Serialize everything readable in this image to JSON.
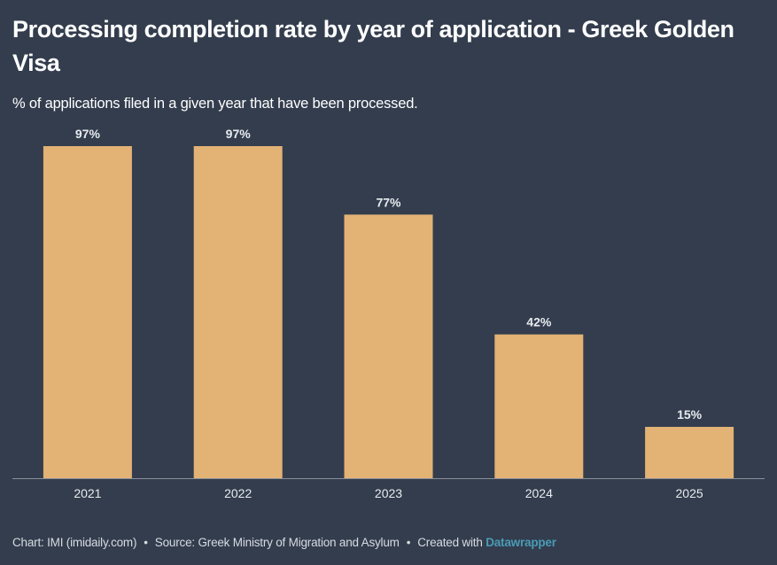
{
  "header": {
    "title": "Processing completion rate by year of application - Greek Golden Visa",
    "subtitle": "% of applications filed in a given year that have been processed."
  },
  "footer": {
    "chart_credit": "Chart: IMI (imidaily.com)",
    "source": "Source: Greek Ministry of Migration and Asylum",
    "created_with_prefix": "Created with",
    "created_with_link": "Datawrapper",
    "separator": "•"
  },
  "colors": {
    "background": "#333d4d",
    "bar": "#e3b275",
    "baseline": "#8a919c",
    "label": "#e8ebf0",
    "link": "#4a9bb5"
  },
  "chart_data": {
    "type": "bar",
    "title": "Processing completion rate by year of application - Greek Golden Visa",
    "subtitle": "% of applications filed in a given year that have been processed.",
    "categories": [
      "2021",
      "2022",
      "2023",
      "2024",
      "2025"
    ],
    "values": [
      97,
      97,
      77,
      42,
      15
    ],
    "value_labels": [
      "97%",
      "97%",
      "77%",
      "42%",
      "15%"
    ],
    "unit": "%",
    "xlabel": "",
    "ylabel": "",
    "ylim": [
      0,
      97
    ],
    "grid": false,
    "legend": "none"
  }
}
